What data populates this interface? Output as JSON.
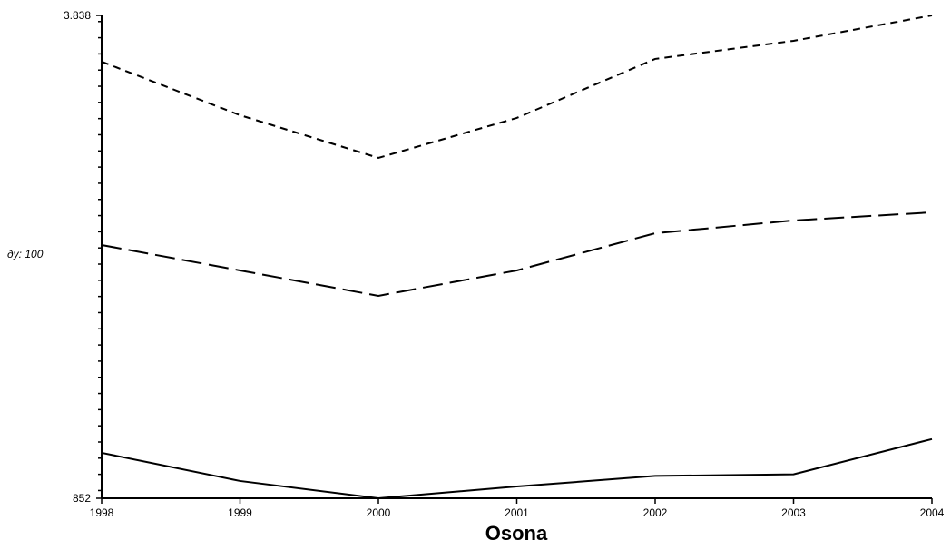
{
  "chart_data": {
    "type": "line",
    "title": "Osona",
    "x": [
      1998,
      1999,
      2000,
      2001,
      2002,
      2003,
      2004
    ],
    "xlim": [
      1998,
      2004
    ],
    "xticks": [
      1998,
      1999,
      2000,
      2001,
      2002,
      2003,
      2004
    ],
    "ylim": [
      852,
      3838
    ],
    "yticks": [
      852,
      {
        "value": 3838,
        "label": "3.838"
      }
    ],
    "yminor_ticks": [
      900,
      1000,
      1100,
      1200,
      1300,
      1400,
      1500,
      1600,
      1700,
      1800,
      1900,
      2000,
      2100,
      2200,
      2300,
      2400,
      2500,
      2600,
      2700,
      2800,
      2900,
      3000,
      3100,
      3200,
      3300,
      3400,
      3500,
      3600,
      3700,
      3800
    ],
    "y_annotation": "ðy: 100",
    "series": [
      {
        "color": "#000000",
        "dash": "none",
        "values": [
          1133,
          959,
          852,
          925,
          990,
          1000,
          1218
        ]
      },
      {
        "color": "#000000",
        "dash": "22,8",
        "values": [
          2418,
          2261,
          2104,
          2261,
          2491,
          2570,
          2620
        ]
      },
      {
        "color": "#000000",
        "dash": "8,6",
        "values": [
          3552,
          3221,
          2957,
          3204,
          3569,
          3681,
          3838
        ]
      }
    ]
  }
}
